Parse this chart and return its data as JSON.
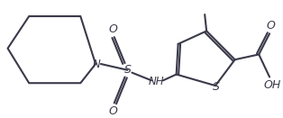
{
  "bg_color": "#ffffff",
  "line_color": "#3a3a4a",
  "line_width": 1.5,
  "figsize": [
    3.14,
    1.31
  ],
  "dpi": 100,
  "xlim": [
    0,
    314
  ],
  "ylim": [
    0,
    131
  ]
}
